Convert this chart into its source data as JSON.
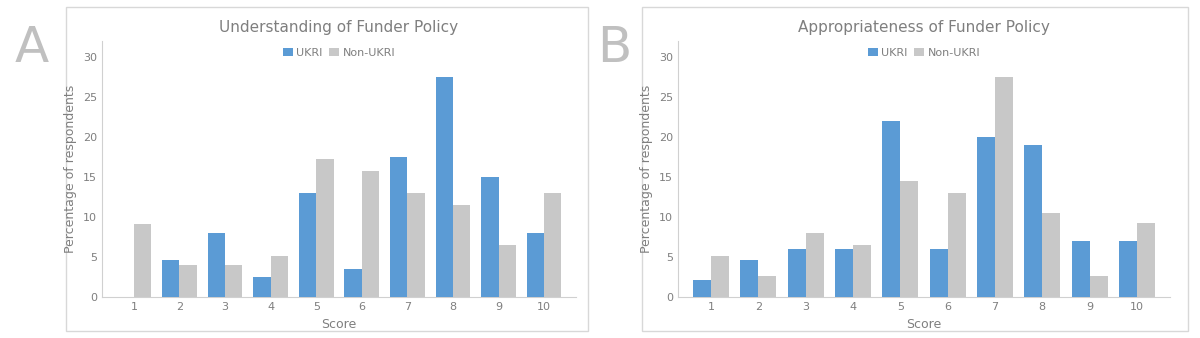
{
  "chart_A": {
    "title": "Understanding of Funder Policy",
    "scores": [
      1,
      2,
      3,
      4,
      5,
      6,
      7,
      8,
      9,
      10
    ],
    "ukri": [
      0,
      4.7,
      8.0,
      2.5,
      13.0,
      3.5,
      17.5,
      27.5,
      15.0,
      8.0
    ],
    "non_ukri": [
      9.2,
      4.0,
      4.0,
      5.2,
      17.3,
      15.7,
      13.0,
      11.5,
      6.5,
      13.0
    ]
  },
  "chart_B": {
    "title": "Appropriateness of Funder Policy",
    "scores": [
      1,
      2,
      3,
      4,
      5,
      6,
      7,
      8,
      9,
      10
    ],
    "ukri": [
      2.2,
      4.7,
      6.0,
      6.0,
      22.0,
      6.0,
      20.0,
      19.0,
      7.0,
      7.0
    ],
    "non_ukri": [
      5.2,
      2.7,
      8.0,
      6.5,
      14.5,
      13.0,
      27.5,
      10.5,
      2.7,
      9.3
    ]
  },
  "ukri_color": "#5B9BD5",
  "non_ukri_color": "#C8C8C8",
  "ylabel": "Percentage of respondents",
  "xlabel": "Score",
  "ylim": [
    0,
    32
  ],
  "yticks": [
    0,
    5,
    10,
    15,
    20,
    25,
    30
  ],
  "legend_ukri": "UKRI",
  "legend_non_ukri": "Non-UKRI",
  "label_A": "A",
  "label_B": "B",
  "background_color": "#ffffff",
  "panel_background": "#ffffff",
  "bar_width": 0.38,
  "title_fontsize": 11,
  "axis_fontsize": 9,
  "tick_fontsize": 8,
  "legend_fontsize": 8,
  "panel_label_fontsize": 36,
  "panel_label_color": "#c0c0c0",
  "title_color": "#7f7f7f",
  "spine_color": "#d0d0d0",
  "tick_label_color": "#7f7f7f"
}
